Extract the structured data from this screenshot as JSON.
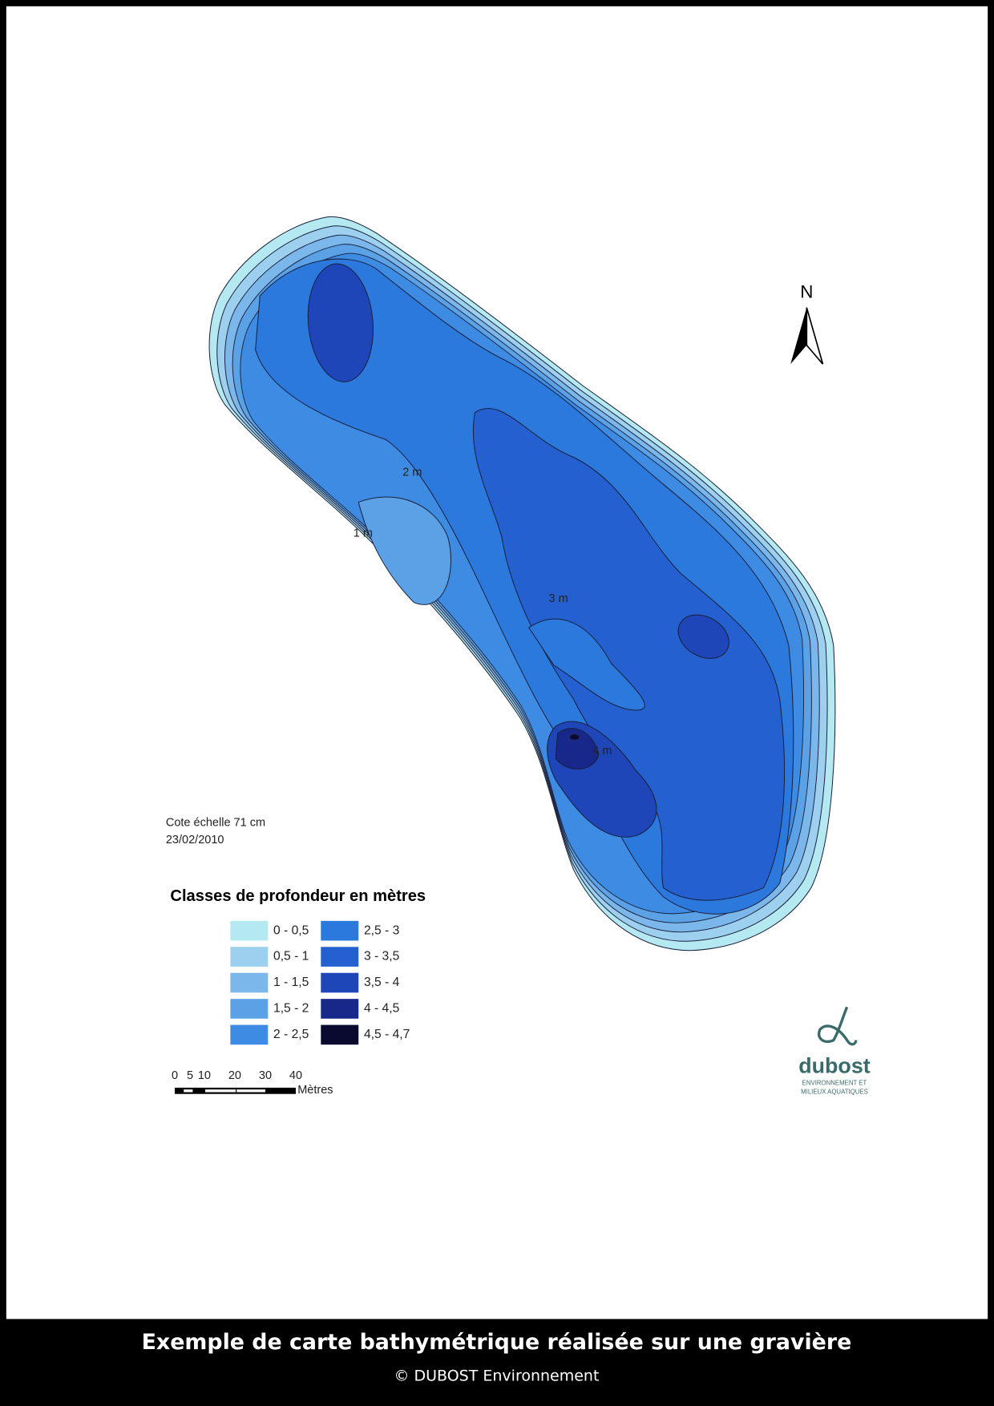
{
  "map": {
    "north": "N",
    "contour_labels": [
      "2 m",
      "1 m",
      "3 m",
      "4 m"
    ]
  },
  "annotation": {
    "gauge": "Cote échelle 71 cm",
    "date": "23/02/2010"
  },
  "legend": {
    "title": "Classes de profondeur en mètres",
    "classes": [
      {
        "label": "0 - 0,5",
        "color": "#b4e9f1"
      },
      {
        "label": "0,5 - 1",
        "color": "#9dd0ee"
      },
      {
        "label": "1 - 1,5",
        "color": "#7bb7ea"
      },
      {
        "label": "1,5 - 2",
        "color": "#5ba1e6"
      },
      {
        "label": "2 - 2,5",
        "color": "#3d8be3"
      },
      {
        "label": "2,5 - 3",
        "color": "#2c79de"
      },
      {
        "label": "3 - 3,5",
        "color": "#2460cf"
      },
      {
        "label": "3,5 - 4",
        "color": "#1e46b8"
      },
      {
        "label": "4 - 4,5",
        "color": "#17288a"
      },
      {
        "label": "4,5 - 4,7",
        "color": "#0a0a30"
      }
    ]
  },
  "scale_bar": {
    "ticks": [
      "0",
      "5",
      "10",
      "20",
      "30",
      "40"
    ],
    "unit": "Mètres"
  },
  "logo": {
    "name": "dubost",
    "line1": "ENVIRONNEMENT ET",
    "line2": "MILIEUX AQUATIQUES"
  },
  "caption": {
    "title": "Exemple de carte bathymétrique réalisée sur une gravière",
    "credit": "© DUBOST Environnement"
  }
}
